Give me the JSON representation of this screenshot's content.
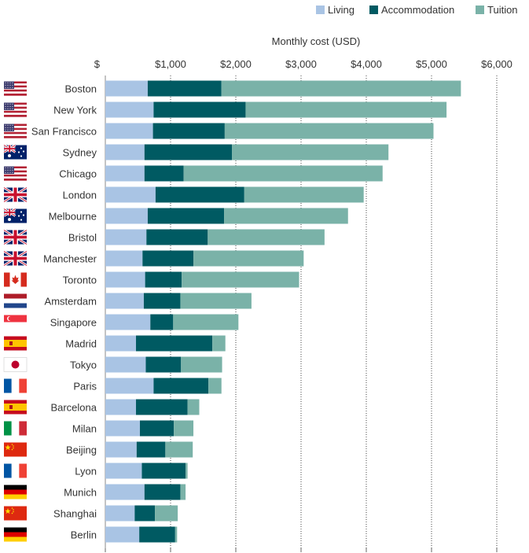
{
  "chart_data": {
    "type": "bar",
    "orientation": "horizontal",
    "stacked": true,
    "title": "",
    "xlabel": "Monthly cost (USD)",
    "ylabel": "",
    "xlim": [
      0,
      6000
    ],
    "xticks": [
      0,
      1000,
      2000,
      3000,
      4000,
      5000,
      6000
    ],
    "xtick_labels": [
      "$",
      "$1,000",
      "$2,000",
      "$3,000",
      "$4,000",
      "$5,000",
      "$6,000"
    ],
    "grid": "vertical dotted",
    "legend_position": "top-right",
    "categories": [
      "Boston",
      "New York",
      "San Francisco",
      "Sydney",
      "Chicago",
      "London",
      "Melbourne",
      "Bristol",
      "Manchester",
      "Toronto",
      "Amsterdam",
      "Singapore",
      "Madrid",
      "Tokyo",
      "Paris",
      "Barcelona",
      "Milan",
      "Beijing",
      "Lyon",
      "Munich",
      "Shanghai",
      "Berlin"
    ],
    "flags": [
      "us",
      "us",
      "us",
      "au",
      "us",
      "uk",
      "au",
      "uk",
      "uk",
      "ca",
      "nl",
      "sg",
      "es",
      "jp",
      "fr",
      "es",
      "it",
      "cn",
      "fr",
      "de",
      "cn",
      "de"
    ],
    "series": [
      {
        "name": "Living",
        "color": "#a9c4e4",
        "values": [
          650,
          740,
          730,
          600,
          600,
          770,
          650,
          630,
          570,
          610,
          590,
          690,
          470,
          620,
          740,
          470,
          530,
          480,
          560,
          600,
          450,
          520
        ]
      },
      {
        "name": "Accommodation",
        "color": "#005a62",
        "values": [
          1130,
          1410,
          1100,
          1340,
          600,
          1360,
          1170,
          940,
          780,
          560,
          560,
          350,
          1170,
          540,
          840,
          790,
          520,
          440,
          670,
          550,
          310,
          550
        ]
      },
      {
        "name": "Tuition",
        "color": "#7ab2a8",
        "values": [
          3670,
          3080,
          3200,
          2400,
          3050,
          1830,
          1900,
          1790,
          1690,
          1800,
          1090,
          1000,
          200,
          630,
          200,
          180,
          300,
          420,
          30,
          80,
          350,
          30
        ]
      }
    ]
  }
}
